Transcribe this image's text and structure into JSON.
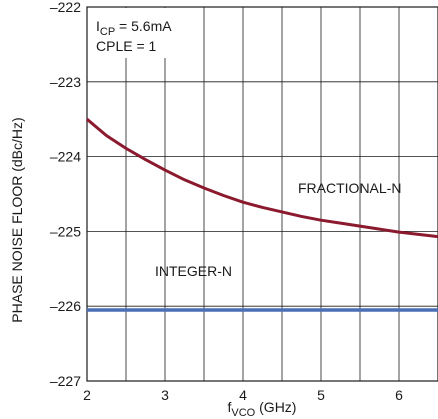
{
  "chart_data": {
    "type": "line",
    "xlabel": {
      "main": "f",
      "sub": "VCO",
      "rest": " (GHz)"
    },
    "ylabel": "PHASE NOISE FLOOR (dBc/Hz)",
    "xlim": [
      2,
      6.5
    ],
    "ylim": [
      -227,
      -222
    ],
    "xticks": [
      2,
      3,
      4,
      5,
      6
    ],
    "yticks": [
      -222,
      -223,
      -224,
      -225,
      -226,
      -227
    ],
    "x_grid_step": 0.5,
    "grid": true,
    "annotation": {
      "line1": {
        "main": "I",
        "sub": "CP",
        "rest": " = 5.6mA"
      },
      "line2": "CPLE = 1"
    },
    "series": [
      {
        "name": "FRACTIONAL-N",
        "color": "#8b1a2e",
        "x": [
          2.0,
          2.25,
          2.5,
          2.75,
          3.0,
          3.25,
          3.5,
          3.75,
          4.0,
          4.25,
          4.5,
          4.75,
          5.0,
          5.25,
          5.5,
          5.75,
          6.0,
          6.25,
          6.5
        ],
        "y": [
          -223.5,
          -223.72,
          -223.89,
          -224.04,
          -224.18,
          -224.31,
          -224.42,
          -224.52,
          -224.61,
          -224.68,
          -224.74,
          -224.8,
          -224.85,
          -224.89,
          -224.93,
          -224.97,
          -225.01,
          -225.04,
          -225.07
        ]
      },
      {
        "name": "INTEGER-N",
        "color": "#4a6fb5",
        "x": [
          2.0,
          6.5
        ],
        "y": [
          -226.05,
          -226.05
        ]
      }
    ]
  }
}
